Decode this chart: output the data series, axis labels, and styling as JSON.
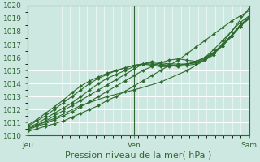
{
  "xlabel": "Pression niveau de la mer( hPa )",
  "ylim": [
    1010,
    1020
  ],
  "yticks": [
    1010,
    1011,
    1012,
    1013,
    1014,
    1015,
    1016,
    1017,
    1018,
    1019,
    1020
  ],
  "xtick_labels": [
    "Jeu",
    "Ven",
    "Sam"
  ],
  "xtick_positions": [
    0.0,
    0.48,
    1.0
  ],
  "bg_color": "#cce8e0",
  "grid_color": "#b8d8d0",
  "line_color": "#2d6a2d",
  "lines": [
    {
      "x": [
        0.0,
        0.04,
        0.08,
        0.12,
        0.16,
        0.2,
        0.24,
        0.28,
        0.32,
        0.36,
        0.4,
        0.44,
        0.48,
        0.52,
        0.56,
        0.6,
        0.64,
        0.68,
        0.72,
        0.76,
        0.8,
        0.84,
        0.88,
        0.92,
        0.96,
        1.0
      ],
      "y": [
        1010.3,
        1010.5,
        1010.7,
        1010.9,
        1011.1,
        1011.4,
        1011.7,
        1012.0,
        1012.3,
        1012.7,
        1013.0,
        1013.4,
        1013.8,
        1014.2,
        1014.6,
        1015.0,
        1015.4,
        1015.8,
        1016.3,
        1016.8,
        1017.3,
        1017.8,
        1018.3,
        1018.8,
        1019.2,
        1019.6
      ]
    },
    {
      "x": [
        0.0,
        0.04,
        0.08,
        0.12,
        0.16,
        0.2,
        0.24,
        0.28,
        0.32,
        0.36,
        0.4,
        0.44,
        0.48,
        0.52,
        0.56,
        0.6,
        0.64,
        0.68,
        0.72,
        0.76,
        0.8,
        0.84,
        0.88,
        0.92,
        0.96,
        1.0
      ],
      "y": [
        1010.4,
        1010.7,
        1010.9,
        1011.2,
        1011.5,
        1011.8,
        1012.2,
        1012.6,
        1013.0,
        1013.4,
        1013.8,
        1014.2,
        1014.6,
        1015.0,
        1015.3,
        1015.6,
        1015.8,
        1015.9,
        1015.8,
        1015.7,
        1016.0,
        1016.6,
        1017.3,
        1018.0,
        1018.7,
        1019.2
      ]
    },
    {
      "x": [
        0.0,
        0.04,
        0.08,
        0.12,
        0.16,
        0.2,
        0.24,
        0.28,
        0.32,
        0.36,
        0.4,
        0.44,
        0.48,
        0.52,
        0.56,
        0.6,
        0.64,
        0.68,
        0.72,
        0.76,
        0.8,
        0.84,
        0.88,
        0.92,
        0.96,
        1.0
      ],
      "y": [
        1010.5,
        1010.8,
        1011.1,
        1011.5,
        1011.9,
        1012.3,
        1012.7,
        1013.1,
        1013.5,
        1013.9,
        1014.3,
        1014.7,
        1015.1,
        1015.5,
        1015.7,
        1015.6,
        1015.5,
        1015.5,
        1015.5,
        1015.6,
        1015.9,
        1016.4,
        1017.0,
        1017.7,
        1018.5,
        1019.1
      ]
    },
    {
      "x": [
        0.0,
        0.04,
        0.08,
        0.12,
        0.16,
        0.2,
        0.24,
        0.28,
        0.32,
        0.36,
        0.4,
        0.44,
        0.48,
        0.52,
        0.56,
        0.6,
        0.64,
        0.68,
        0.72,
        0.76,
        0.8,
        0.84,
        0.88,
        0.92,
        0.96,
        1.0
      ],
      "y": [
        1010.6,
        1010.9,
        1011.3,
        1011.7,
        1012.1,
        1012.5,
        1013.0,
        1013.5,
        1014.0,
        1014.4,
        1014.7,
        1015.0,
        1015.3,
        1015.5,
        1015.6,
        1015.5,
        1015.4,
        1015.3,
        1015.4,
        1015.5,
        1015.8,
        1016.3,
        1016.9,
        1017.6,
        1018.4,
        1019.0
      ]
    },
    {
      "x": [
        0.0,
        0.04,
        0.08,
        0.12,
        0.16,
        0.2,
        0.24,
        0.28,
        0.32,
        0.36,
        0.4,
        0.44,
        0.48,
        0.52,
        0.56,
        0.6,
        0.64,
        0.68,
        0.72,
        0.76,
        0.8,
        0.84,
        0.88,
        0.92,
        0.96,
        1.0
      ],
      "y": [
        1010.7,
        1011.1,
        1011.5,
        1012.0,
        1012.5,
        1013.0,
        1013.5,
        1014.0,
        1014.4,
        1014.7,
        1015.0,
        1015.2,
        1015.4,
        1015.5,
        1015.5,
        1015.4,
        1015.4,
        1015.4,
        1015.5,
        1015.6,
        1015.9,
        1016.3,
        1016.9,
        1017.6,
        1018.4,
        1019.0
      ]
    },
    {
      "x": [
        0.0,
        0.04,
        0.08,
        0.12,
        0.16,
        0.2,
        0.24,
        0.28,
        0.32,
        0.36,
        0.4,
        0.44,
        0.48,
        0.52,
        0.56,
        0.6,
        0.64,
        0.68,
        0.72,
        0.76,
        0.8,
        0.84,
        0.88,
        0.92,
        0.96,
        1.0
      ],
      "y": [
        1010.8,
        1011.2,
        1011.7,
        1012.2,
        1012.7,
        1013.3,
        1013.8,
        1014.2,
        1014.5,
        1014.8,
        1015.0,
        1015.2,
        1015.4,
        1015.5,
        1015.4,
        1015.3,
        1015.3,
        1015.4,
        1015.5,
        1015.7,
        1016.0,
        1016.4,
        1017.0,
        1017.7,
        1018.5,
        1019.1
      ]
    },
    {
      "x": [
        0.0,
        0.12,
        0.24,
        0.36,
        0.48,
        0.6,
        0.72,
        0.84,
        1.0
      ],
      "y": [
        1010.5,
        1011.3,
        1012.3,
        1013.0,
        1013.5,
        1014.1,
        1015.0,
        1016.2,
        1019.8
      ]
    }
  ],
  "marker": "D",
  "markersize": 2.0,
  "linewidth": 0.8,
  "vline_x": 0.48,
  "vline_x2": 1.0,
  "border_color": "#336633",
  "label_color": "#336633",
  "xlabel_fontsize": 8,
  "tick_fontsize": 6.5,
  "fig_bg": "#cce8e0"
}
